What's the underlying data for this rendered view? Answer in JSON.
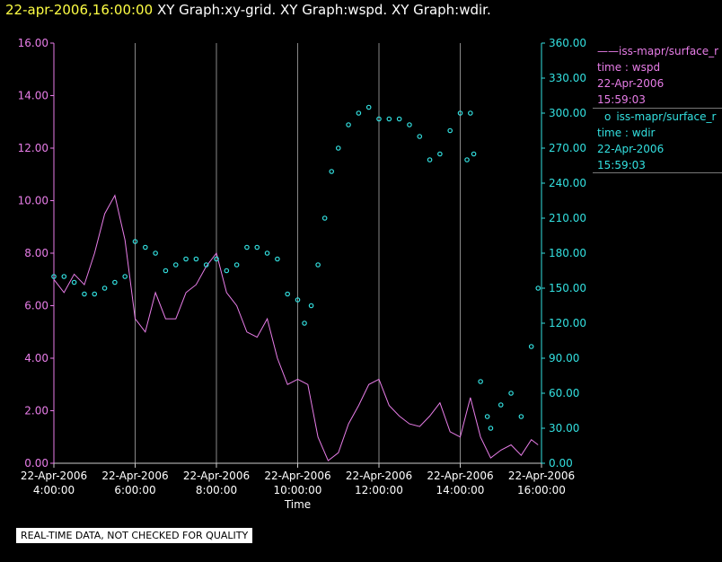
{
  "header": {
    "timestamp": "22-apr-2006,16:00:00",
    "graphs": "XY Graph:xy-grid.  XY Graph:wspd.  XY Graph:wdir."
  },
  "legend": [
    {
      "symbol": "——",
      "source": "iss-mapr/surface_r",
      "label": "time : wspd",
      "date": "22-Apr-2006",
      "time": "15:59:03",
      "color": "#e87de8"
    },
    {
      "symbol": "o",
      "source": "iss-mapr/surface_r",
      "label": "time : wdir",
      "date": "22-Apr-2006",
      "time": "15:59:03",
      "color": "#33e0e0"
    }
  ],
  "disclaimer": "REAL-TIME DATA, NOT CHECKED FOR QUALITY",
  "colors": {
    "background": "#000000",
    "wspd": "#e87de8",
    "wdir": "#33e0e0",
    "grid": "#888888",
    "axis_text": "#ffffff"
  },
  "chart_data": {
    "type": "line",
    "xlabel": "Time",
    "x_ticks": [
      {
        "date": "22-Apr-2006",
        "time": "4:00:00"
      },
      {
        "date": "22-Apr-2006",
        "time": "6:00:00"
      },
      {
        "date": "22-Apr-2006",
        "time": "8:00:00"
      },
      {
        "date": "22-Apr-2006",
        "time": "10:00:00"
      },
      {
        "date": "22-Apr-2006",
        "time": "12:00:00"
      },
      {
        "date": "22-Apr-2006",
        "time": "14:00:00"
      },
      {
        "date": "22-Apr-2006",
        "time": "16:00:00"
      }
    ],
    "xlim": [
      "04:00",
      "16:00"
    ],
    "grid": "vertical",
    "y_left": {
      "ylim": [
        0,
        16
      ],
      "ticks": [
        "0.00",
        "2.00",
        "4.00",
        "6.00",
        "8.00",
        "10.00",
        "12.00",
        "14.00",
        "16.00"
      ],
      "color": "#e87de8"
    },
    "y_right": {
      "ylim": [
        0,
        360
      ],
      "ticks": [
        "0.00",
        "30.00",
        "60.00",
        "90.00",
        "120.00",
        "150.00",
        "180.00",
        "210.00",
        "240.00",
        "270.00",
        "300.00",
        "330.00",
        "360.00"
      ],
      "color": "#33e0e0"
    },
    "series": [
      {
        "type": "line",
        "axis": "left",
        "x": [
          "04:00",
          "04:15",
          "04:30",
          "04:45",
          "05:00",
          "05:15",
          "05:30",
          "05:45",
          "06:00",
          "06:15",
          "06:30",
          "06:45",
          "07:00",
          "07:15",
          "07:30",
          "07:45",
          "08:00",
          "08:15",
          "08:30",
          "08:45",
          "09:00",
          "09:15",
          "09:30",
          "09:45",
          "10:00",
          "10:15",
          "10:30",
          "10:45",
          "11:00",
          "11:15",
          "11:30",
          "11:45",
          "12:00",
          "12:15",
          "12:30",
          "12:45",
          "13:00",
          "13:15",
          "13:30",
          "13:45",
          "14:00",
          "14:15",
          "14:30",
          "14:45",
          "15:00",
          "15:15",
          "15:30",
          "15:45",
          "15:55"
        ],
        "values": [
          7.0,
          6.5,
          7.2,
          6.8,
          8.0,
          9.5,
          10.2,
          8.5,
          5.5,
          5.0,
          6.5,
          5.5,
          5.5,
          6.5,
          6.8,
          7.5,
          8.0,
          6.5,
          6.0,
          5.0,
          4.8,
          5.5,
          4.0,
          3.0,
          3.2,
          3.0,
          1.0,
          0.1,
          0.4,
          1.5,
          2.2,
          3.0,
          3.2,
          2.2,
          1.8,
          1.5,
          1.4,
          1.8,
          2.3,
          1.2,
          1.0,
          2.5,
          1.0,
          0.2,
          0.5,
          0.7,
          0.3,
          0.9,
          0.7
        ]
      },
      {
        "type": "scatter",
        "axis": "right",
        "x": [
          "04:00",
          "04:15",
          "04:30",
          "04:45",
          "05:00",
          "05:15",
          "05:30",
          "05:45",
          "06:00",
          "06:15",
          "06:30",
          "06:45",
          "07:00",
          "07:15",
          "07:30",
          "07:45",
          "08:00",
          "08:15",
          "08:30",
          "08:45",
          "09:00",
          "09:15",
          "09:30",
          "09:45",
          "10:00",
          "10:10",
          "10:20",
          "10:30",
          "10:40",
          "10:50",
          "11:00",
          "11:15",
          "11:30",
          "11:45",
          "12:00",
          "12:15",
          "12:30",
          "12:45",
          "13:00",
          "13:15",
          "13:30",
          "13:45",
          "14:00",
          "14:10",
          "14:15",
          "14:20",
          "14:30",
          "14:40",
          "14:45",
          "15:00",
          "15:15",
          "15:30",
          "15:45",
          "15:55"
        ],
        "values": [
          160,
          160,
          155,
          145,
          145,
          150,
          155,
          160,
          190,
          185,
          180,
          165,
          170,
          175,
          175,
          170,
          175,
          165,
          170,
          185,
          185,
          180,
          175,
          145,
          140,
          120,
          135,
          170,
          210,
          250,
          270,
          290,
          300,
          305,
          295,
          295,
          295,
          290,
          280,
          260,
          265,
          285,
          300,
          260,
          300,
          265,
          70,
          40,
          30,
          50,
          60,
          40,
          100,
          150
        ]
      }
    ]
  }
}
